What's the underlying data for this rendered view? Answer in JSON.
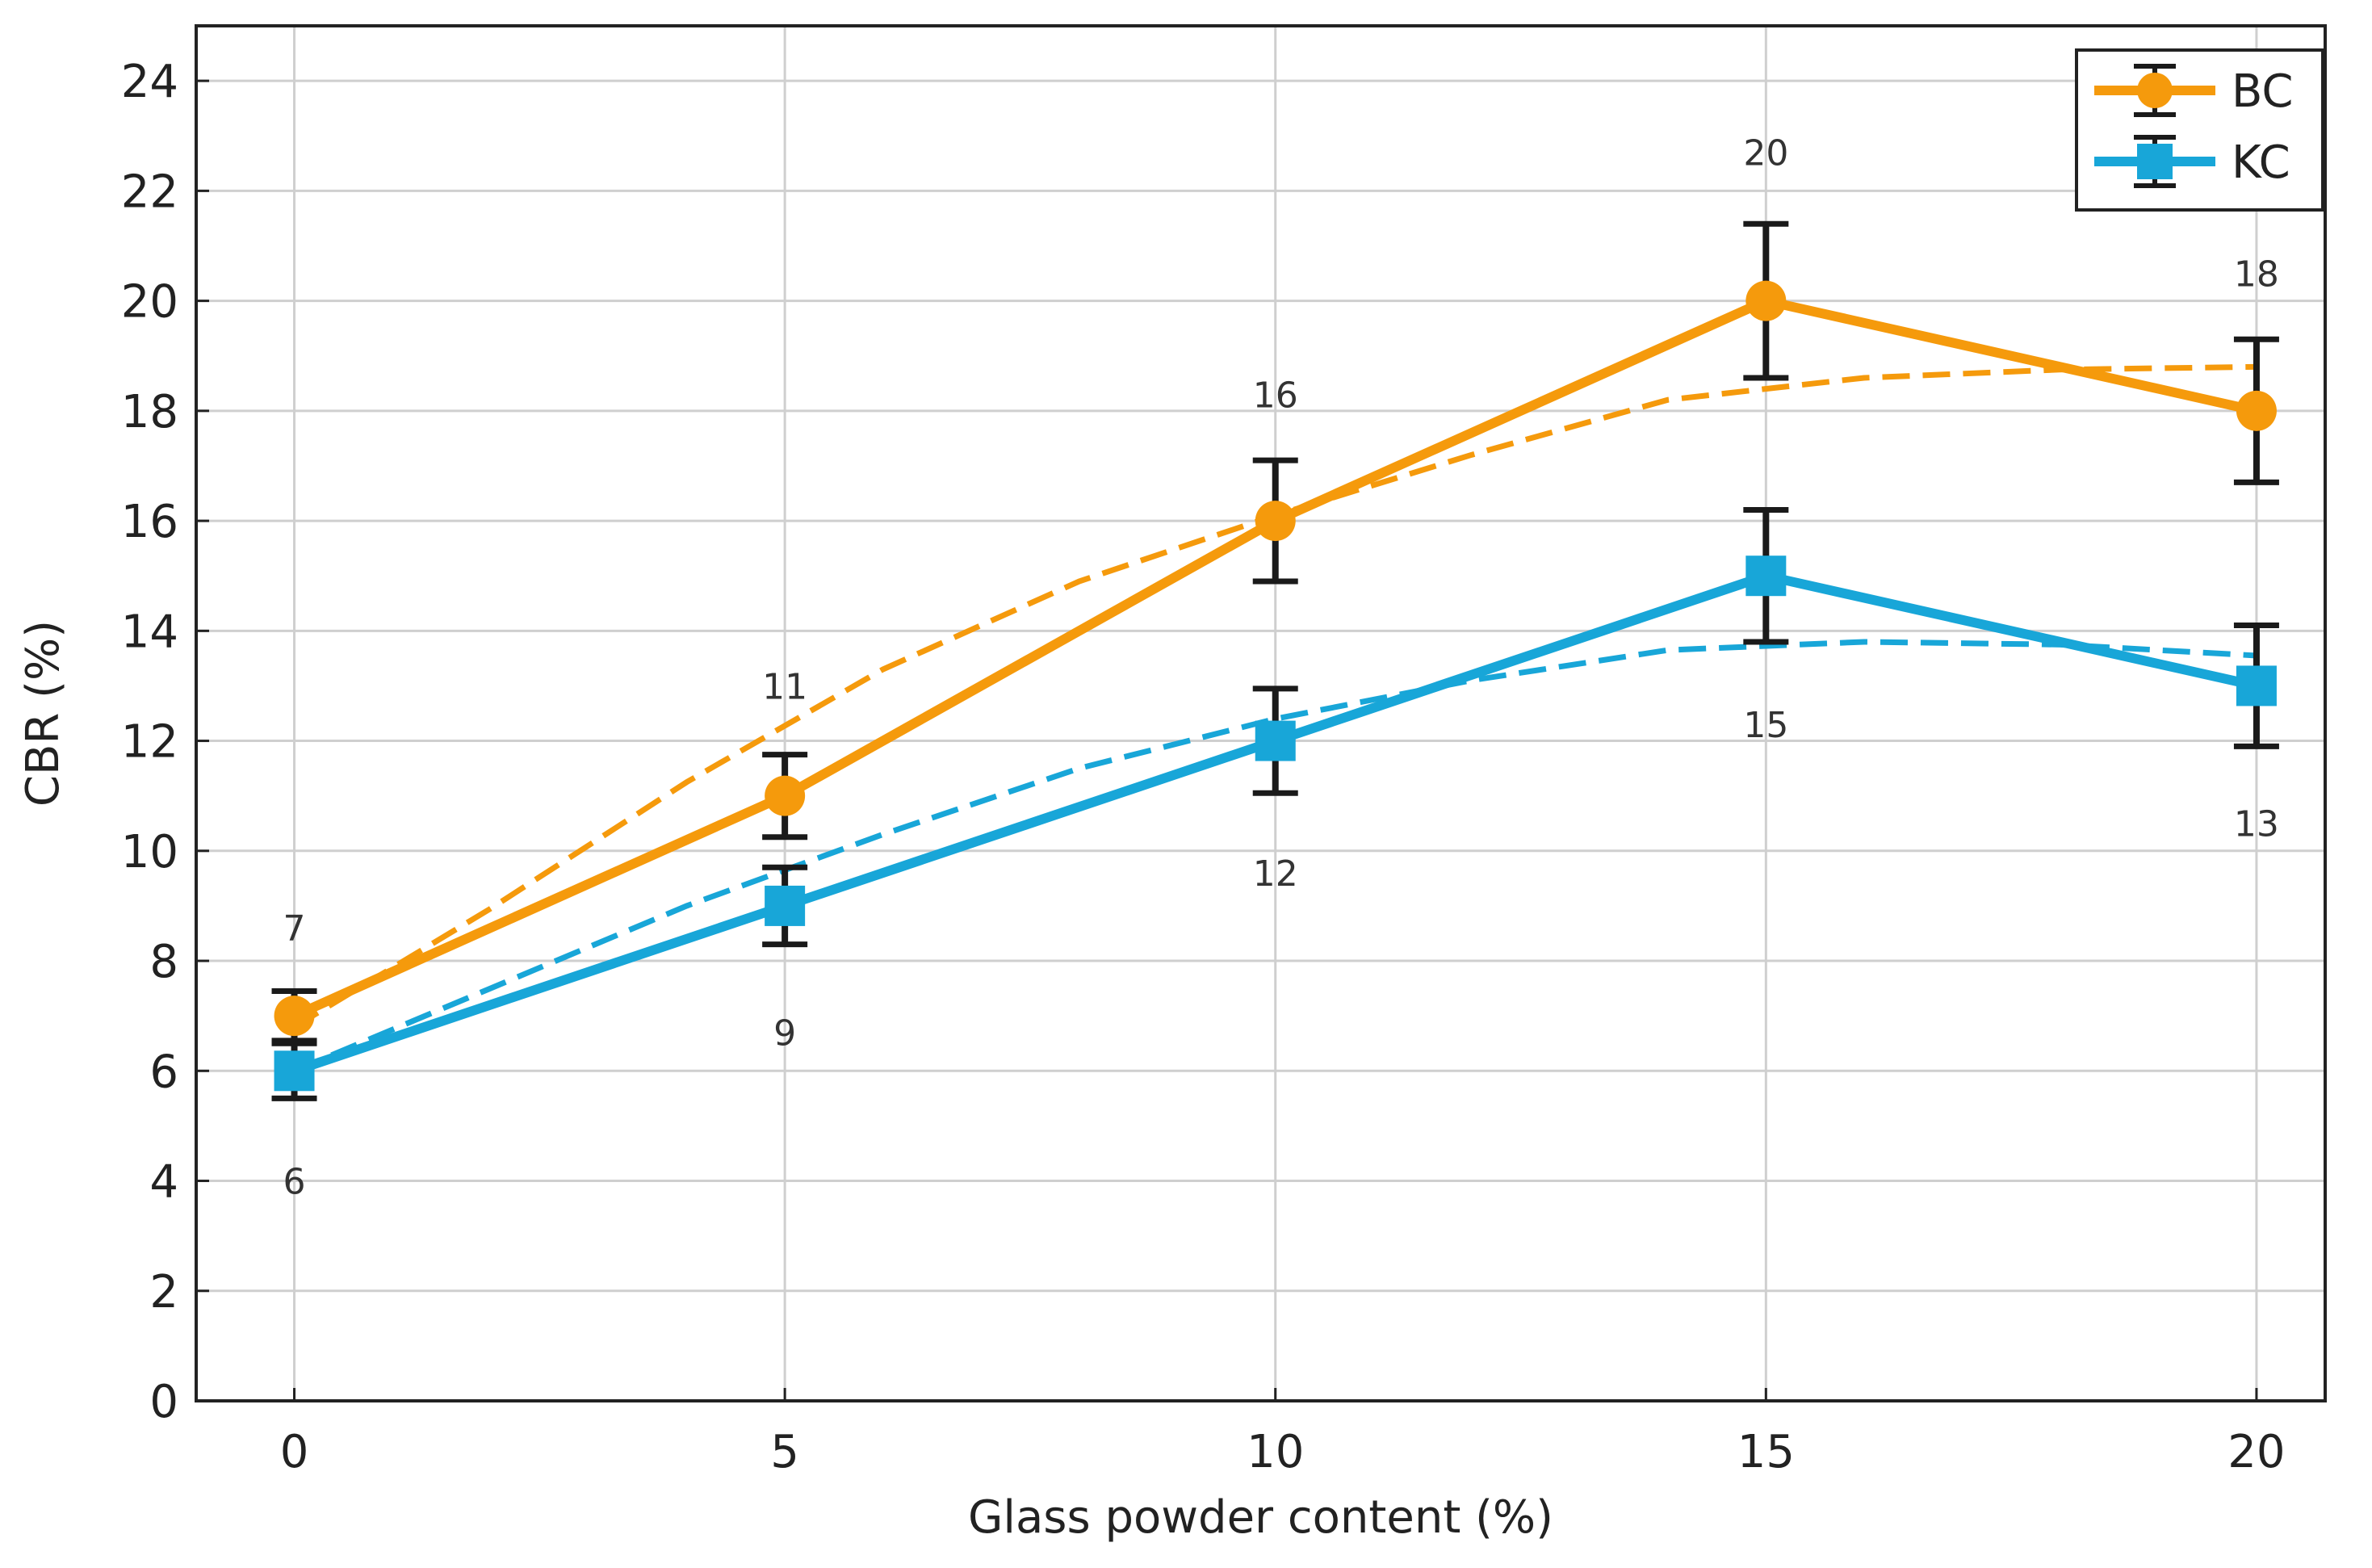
{
  "chart_data": {
    "type": "line",
    "title": "",
    "xlabel": "Glass powder content (%)",
    "ylabel": "CBR (%)",
    "x": [
      0,
      5,
      10,
      15,
      20
    ],
    "xlim": [
      -1,
      20.7
    ],
    "ylim": [
      0,
      25
    ],
    "xticks": [
      0,
      5,
      10,
      15,
      20
    ],
    "yticks": [
      0,
      2,
      4,
      6,
      8,
      10,
      12,
      14,
      16,
      18,
      20,
      22,
      24
    ],
    "grid": true,
    "legend_position": "top-right",
    "series": [
      {
        "name": "BC",
        "color": "#f59a0c",
        "marker": "circle",
        "values": [
          7,
          11,
          16,
          20,
          18
        ],
        "errors": [
          0.45,
          0.75,
          1.1,
          1.4,
          1.3
        ],
        "data_labels": [
          "7",
          "11",
          "16",
          "20",
          "18"
        ],
        "label_offsets": [
          1.6,
          2.0,
          2.3,
          2.7,
          2.5
        ],
        "fit": {
          "style": "dashed",
          "x": [
            0,
            2,
            4,
            6,
            8,
            10,
            12,
            14,
            16,
            18,
            20
          ],
          "y": [
            6.8,
            8.95,
            11.25,
            13.3,
            14.9,
            16.1,
            17.2,
            18.2,
            18.6,
            18.75,
            18.8
          ]
        }
      },
      {
        "name": "KC",
        "color": "#18a6d8",
        "marker": "square",
        "values": [
          6,
          9,
          12,
          15,
          13
        ],
        "errors": [
          0.5,
          0.7,
          0.95,
          1.2,
          1.1
        ],
        "data_labels": [
          "6",
          "9",
          "12",
          "15",
          "13"
        ],
        "label_offsets": [
          -2.0,
          -2.3,
          -2.4,
          -2.7,
          -2.5
        ],
        "fit": {
          "style": "dashed",
          "x": [
            0,
            2,
            4,
            6,
            8,
            10,
            12,
            14,
            16,
            18,
            20
          ],
          "y": [
            6.0,
            7.5,
            9.0,
            10.3,
            11.5,
            12.4,
            13.1,
            13.65,
            13.8,
            13.75,
            13.55
          ]
        }
      }
    ]
  }
}
